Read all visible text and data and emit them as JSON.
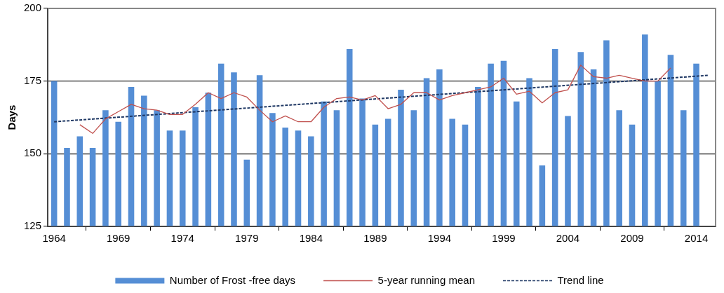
{
  "chart_data": {
    "type": "bar",
    "ylabel": "Days",
    "xlim": [
      1963.5,
      2015.5
    ],
    "xticks": [
      1964,
      1969,
      1974,
      1979,
      1984,
      1989,
      1994,
      1999,
      2004,
      2009,
      2014
    ],
    "ylim": [
      125,
      200
    ],
    "yticks": [
      125,
      150,
      175,
      200
    ],
    "grid": "y",
    "legend": "bottom",
    "series": [
      {
        "name": "Number of Frost -free days",
        "color": "#558ed5",
        "x": [
          1964,
          1965,
          1966,
          1967,
          1968,
          1969,
          1970,
          1971,
          1972,
          1973,
          1974,
          1975,
          1976,
          1977,
          1978,
          1979,
          1980,
          1981,
          1982,
          1983,
          1984,
          1985,
          1986,
          1987,
          1988,
          1989,
          1990,
          1991,
          1992,
          1993,
          1994,
          1995,
          1996,
          1997,
          1998,
          1999,
          2000,
          2001,
          2002,
          2003,
          2004,
          2005,
          2006,
          2007,
          2008,
          2009,
          2010,
          2011,
          2012,
          2013,
          2014
        ],
        "values": [
          175,
          152,
          156,
          152,
          165,
          161,
          173,
          170,
          165,
          158,
          158,
          166,
          171,
          181,
          178,
          148,
          177,
          164,
          159,
          158,
          156,
          168,
          165,
          186,
          169,
          160,
          162,
          172,
          165,
          176,
          179,
          162,
          160,
          173,
          181,
          182,
          168,
          176,
          146,
          186,
          163,
          185,
          179,
          189,
          165,
          160,
          191,
          175,
          184,
          165,
          181
        ]
      },
      {
        "name": "5-year running mean",
        "type": "line",
        "color": "#c0504d",
        "line_style": "solid",
        "x": [
          1966,
          1967,
          1968,
          1969,
          1970,
          1971,
          1972,
          1973,
          1974,
          1975,
          1976,
          1977,
          1978,
          1979,
          1980,
          1981,
          1982,
          1983,
          1984,
          1985,
          1986,
          1987,
          1988,
          1989,
          1990,
          1991,
          1992,
          1993,
          1994,
          1995,
          1996,
          1997,
          1998,
          1999,
          2000,
          2001,
          2002,
          2003,
          2004,
          2005,
          2006,
          2007,
          2008,
          2009,
          2010,
          2011,
          2012
        ],
        "values": [
          160,
          157,
          162,
          164.5,
          167,
          165.5,
          165,
          163.5,
          163.5,
          167,
          171,
          169,
          171,
          169.5,
          165,
          161,
          163,
          161,
          161,
          166,
          169,
          169.5,
          168.5,
          170,
          165.5,
          167,
          171,
          171,
          168.5,
          170,
          171,
          172,
          173,
          176,
          170.5,
          171.5,
          167.5,
          171,
          172,
          180.5,
          176.5,
          176,
          177,
          176,
          175,
          175,
          179.5
        ]
      },
      {
        "name": "Trend line",
        "type": "line",
        "color": "#1f3864",
        "line_style": "dashed",
        "x": [
          1964,
          2015
        ],
        "values": [
          161,
          177
        ]
      }
    ]
  }
}
